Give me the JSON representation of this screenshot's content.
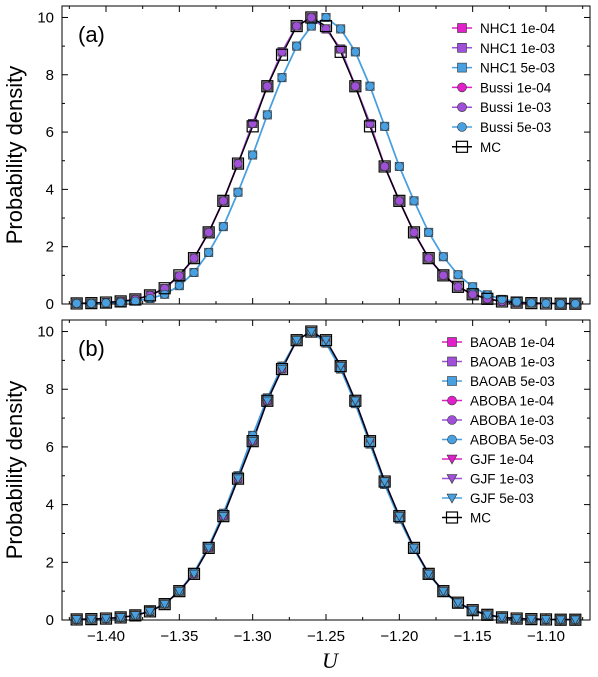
{
  "chart_data": {
    "type": "line",
    "xlabel": "U",
    "ylabel": "Probability density",
    "xlim": [
      -1.43,
      -1.07
    ],
    "ylim": [
      0,
      10.4
    ],
    "xticks": [
      "-1.40",
      "-1.35",
      "-1.30",
      "-1.25",
      "-1.20",
      "-1.15",
      "-1.10"
    ],
    "xtick_values": [
      -1.4,
      -1.35,
      -1.3,
      -1.25,
      -1.2,
      -1.15,
      -1.1
    ],
    "yticks": [
      "0",
      "2",
      "4",
      "6",
      "8",
      "10"
    ],
    "ytick_values": [
      0,
      2,
      4,
      6,
      8,
      10
    ],
    "x": [
      -1.42,
      -1.41,
      -1.4,
      -1.39,
      -1.38,
      -1.37,
      -1.36,
      -1.35,
      -1.34,
      -1.33,
      -1.32,
      -1.31,
      -1.3,
      -1.29,
      -1.28,
      -1.27,
      -1.26,
      -1.25,
      -1.24,
      -1.23,
      -1.22,
      -1.21,
      -1.2,
      -1.19,
      -1.18,
      -1.17,
      -1.16,
      -1.15,
      -1.14,
      -1.13,
      -1.12,
      -1.11,
      -1.1,
      -1.09,
      -1.08
    ],
    "legend_position": "right",
    "colors": {
      "magenta": "#e020c8",
      "purple": "#a050d8",
      "lightblue": "#48a0e0",
      "black": "#000000"
    },
    "panels": [
      {
        "label": "(a)",
        "series": [
          {
            "name": "NHC1 1e-04",
            "marker": "square",
            "color": "#e020c8",
            "values": [
              0.02,
              0.03,
              0.05,
              0.09,
              0.16,
              0.3,
              0.54,
              0.98,
              1.6,
              2.5,
              3.6,
              4.9,
              6.3,
              7.6,
              8.8,
              9.7,
              10.0,
              9.6,
              8.9,
              7.6,
              6.3,
              4.8,
              3.6,
              2.5,
              1.6,
              1.0,
              0.6,
              0.34,
              0.18,
              0.09,
              0.05,
              0.03,
              0.02,
              0.01,
              0.01
            ]
          },
          {
            "name": "NHC1 1e-03",
            "marker": "square",
            "color": "#a050d8",
            "values": [
              0.02,
              0.03,
              0.05,
              0.09,
              0.16,
              0.3,
              0.54,
              0.98,
              1.6,
              2.5,
              3.6,
              4.9,
              6.3,
              7.6,
              8.8,
              9.7,
              10.0,
              9.6,
              8.9,
              7.6,
              6.3,
              4.8,
              3.6,
              2.5,
              1.6,
              1.0,
              0.6,
              0.34,
              0.18,
              0.09,
              0.05,
              0.03,
              0.02,
              0.01,
              0.01
            ]
          },
          {
            "name": "NHC1 5e-03",
            "marker": "square",
            "color": "#48a0e0",
            "values": [
              0.02,
              0.02,
              0.04,
              0.06,
              0.1,
              0.19,
              0.34,
              0.64,
              1.1,
              1.8,
              2.7,
              3.9,
              5.2,
              6.6,
              7.9,
              9.0,
              9.7,
              10.0,
              9.6,
              8.8,
              7.6,
              6.2,
              4.8,
              3.6,
              2.5,
              1.65,
              1.02,
              0.6,
              0.32,
              0.16,
              0.08,
              0.04,
              0.02,
              0.01,
              0.01
            ]
          },
          {
            "name": "Bussi 1e-04",
            "marker": "circle",
            "color": "#e020c8",
            "values": [
              0.02,
              0.03,
              0.05,
              0.09,
              0.16,
              0.3,
              0.54,
              0.98,
              1.6,
              2.5,
              3.6,
              4.9,
              6.3,
              7.6,
              8.8,
              9.7,
              10.0,
              9.6,
              8.9,
              7.6,
              6.3,
              4.8,
              3.6,
              2.5,
              1.6,
              1.0,
              0.6,
              0.34,
              0.18,
              0.09,
              0.05,
              0.03,
              0.02,
              0.01,
              0.01
            ]
          },
          {
            "name": "Bussi 1e-03",
            "marker": "circle",
            "color": "#a050d8",
            "values": [
              0.02,
              0.03,
              0.05,
              0.09,
              0.16,
              0.3,
              0.54,
              0.98,
              1.6,
              2.5,
              3.6,
              4.9,
              6.3,
              7.6,
              8.8,
              9.7,
              10.0,
              9.6,
              8.9,
              7.6,
              6.3,
              4.8,
              3.6,
              2.5,
              1.6,
              1.0,
              0.6,
              0.34,
              0.18,
              0.09,
              0.05,
              0.03,
              0.02,
              0.01,
              0.01
            ]
          },
          {
            "name": "Bussi 5e-03",
            "marker": "circle",
            "color": "#48a0e0",
            "values": [
              0.02,
              0.02,
              0.04,
              0.06,
              0.1,
              0.19,
              0.34,
              0.64,
              1.1,
              1.8,
              2.7,
              3.9,
              5.2,
              6.6,
              7.9,
              9.0,
              9.7,
              10.0,
              9.6,
              8.8,
              7.6,
              6.2,
              4.8,
              3.6,
              2.5,
              1.65,
              1.02,
              0.6,
              0.32,
              0.16,
              0.08,
              0.04,
              0.02,
              0.01,
              0.01
            ]
          },
          {
            "name": "MC",
            "marker": "open-square",
            "color": "#000000",
            "values": [
              0.02,
              0.03,
              0.05,
              0.09,
              0.16,
              0.3,
              0.55,
              1.0,
              1.6,
              2.5,
              3.6,
              4.9,
              6.2,
              7.6,
              8.7,
              9.7,
              10.0,
              9.7,
              8.8,
              7.6,
              6.2,
              4.8,
              3.6,
              2.5,
              1.6,
              1.0,
              0.6,
              0.34,
              0.18,
              0.09,
              0.05,
              0.03,
              0.02,
              0.01,
              0.01
            ]
          }
        ]
      },
      {
        "label": "(b)",
        "series": [
          {
            "name": "BAOAB 1e-04",
            "marker": "square",
            "color": "#e020c8",
            "values": [
              0.02,
              0.03,
              0.05,
              0.09,
              0.16,
              0.3,
              0.55,
              1.0,
              1.6,
              2.5,
              3.6,
              4.9,
              6.2,
              7.6,
              8.7,
              9.7,
              10.0,
              9.7,
              8.8,
              7.6,
              6.2,
              4.8,
              3.6,
              2.5,
              1.6,
              1.0,
              0.6,
              0.34,
              0.18,
              0.09,
              0.05,
              0.03,
              0.02,
              0.01,
              0.01
            ]
          },
          {
            "name": "BAOAB 1e-03",
            "marker": "square",
            "color": "#a050d8",
            "values": [
              0.02,
              0.03,
              0.05,
              0.09,
              0.16,
              0.3,
              0.55,
              1.0,
              1.6,
              2.5,
              3.6,
              4.9,
              6.2,
              7.6,
              8.7,
              9.7,
              10.0,
              9.7,
              8.8,
              7.6,
              6.2,
              4.8,
              3.6,
              2.5,
              1.6,
              1.0,
              0.6,
              0.34,
              0.18,
              0.09,
              0.05,
              0.03,
              0.02,
              0.01,
              0.01
            ]
          },
          {
            "name": "BAOAB 5e-03",
            "marker": "square",
            "color": "#48a0e0",
            "values": [
              0.02,
              0.03,
              0.05,
              0.09,
              0.16,
              0.31,
              0.56,
              1.0,
              1.65,
              2.55,
              3.7,
              5.0,
              6.4,
              7.7,
              8.8,
              9.7,
              10.0,
              9.6,
              8.7,
              7.5,
              6.1,
              4.7,
              3.5,
              2.45,
              1.58,
              0.98,
              0.58,
              0.33,
              0.17,
              0.09,
              0.05,
              0.03,
              0.02,
              0.01,
              0.01
            ]
          },
          {
            "name": "ABOBA 1e-04",
            "marker": "circle",
            "color": "#e020c8",
            "values": [
              0.02,
              0.03,
              0.05,
              0.09,
              0.16,
              0.3,
              0.55,
              1.0,
              1.6,
              2.5,
              3.6,
              4.9,
              6.2,
              7.6,
              8.7,
              9.7,
              10.0,
              9.7,
              8.8,
              7.6,
              6.2,
              4.8,
              3.6,
              2.5,
              1.6,
              1.0,
              0.6,
              0.34,
              0.18,
              0.09,
              0.05,
              0.03,
              0.02,
              0.01,
              0.01
            ]
          },
          {
            "name": "ABOBA 1e-03",
            "marker": "circle",
            "color": "#a050d8",
            "values": [
              0.02,
              0.03,
              0.05,
              0.09,
              0.16,
              0.3,
              0.55,
              1.0,
              1.6,
              2.5,
              3.6,
              4.9,
              6.2,
              7.6,
              8.7,
              9.7,
              10.0,
              9.7,
              8.8,
              7.6,
              6.2,
              4.8,
              3.6,
              2.5,
              1.6,
              1.0,
              0.6,
              0.34,
              0.18,
              0.09,
              0.05,
              0.03,
              0.02,
              0.01,
              0.01
            ]
          },
          {
            "name": "ABOBA 5e-03",
            "marker": "circle",
            "color": "#48a0e0",
            "values": [
              0.02,
              0.03,
              0.05,
              0.09,
              0.16,
              0.31,
              0.56,
              1.0,
              1.65,
              2.55,
              3.7,
              5.0,
              6.4,
              7.7,
              8.8,
              9.7,
              10.0,
              9.6,
              8.7,
              7.5,
              6.1,
              4.7,
              3.5,
              2.45,
              1.58,
              0.98,
              0.58,
              0.33,
              0.17,
              0.09,
              0.05,
              0.03,
              0.02,
              0.01,
              0.01
            ]
          },
          {
            "name": "GJF 1e-04",
            "marker": "triangle-down",
            "color": "#e020c8",
            "values": [
              0.02,
              0.03,
              0.05,
              0.09,
              0.16,
              0.3,
              0.55,
              1.0,
              1.6,
              2.5,
              3.6,
              4.9,
              6.2,
              7.6,
              8.7,
              9.7,
              10.0,
              9.7,
              8.8,
              7.6,
              6.2,
              4.8,
              3.6,
              2.5,
              1.6,
              1.0,
              0.6,
              0.34,
              0.18,
              0.09,
              0.05,
              0.03,
              0.02,
              0.01,
              0.01
            ]
          },
          {
            "name": "GJF 1e-03",
            "marker": "triangle-down",
            "color": "#a050d8",
            "values": [
              0.02,
              0.03,
              0.05,
              0.09,
              0.16,
              0.3,
              0.55,
              1.0,
              1.6,
              2.5,
              3.6,
              4.9,
              6.2,
              7.6,
              8.7,
              9.7,
              10.0,
              9.7,
              8.8,
              7.6,
              6.2,
              4.8,
              3.6,
              2.5,
              1.6,
              1.0,
              0.6,
              0.34,
              0.18,
              0.09,
              0.05,
              0.03,
              0.02,
              0.01,
              0.01
            ]
          },
          {
            "name": "GJF 5e-03",
            "marker": "triangle-down",
            "color": "#48a0e0",
            "values": [
              0.02,
              0.03,
              0.05,
              0.09,
              0.16,
              0.3,
              0.55,
              1.0,
              1.6,
              2.5,
              3.6,
              4.9,
              6.2,
              7.6,
              8.7,
              9.7,
              10.0,
              9.7,
              8.8,
              7.6,
              6.2,
              4.8,
              3.6,
              2.5,
              1.6,
              1.0,
              0.6,
              0.34,
              0.18,
              0.09,
              0.05,
              0.03,
              0.02,
              0.01,
              0.01
            ]
          },
          {
            "name": "MC",
            "marker": "open-square",
            "color": "#000000",
            "values": [
              0.02,
              0.03,
              0.05,
              0.09,
              0.16,
              0.3,
              0.55,
              1.0,
              1.6,
              2.5,
              3.6,
              4.9,
              6.2,
              7.6,
              8.7,
              9.7,
              10.0,
              9.7,
              8.8,
              7.6,
              6.2,
              4.8,
              3.6,
              2.5,
              1.6,
              1.0,
              0.6,
              0.34,
              0.18,
              0.09,
              0.05,
              0.03,
              0.02,
              0.01,
              0.01
            ]
          }
        ]
      }
    ]
  }
}
